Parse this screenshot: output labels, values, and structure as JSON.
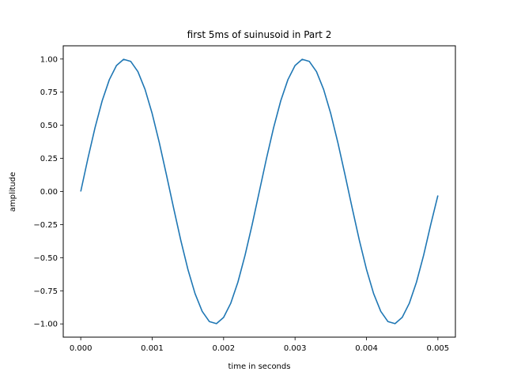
{
  "chart_data": {
    "type": "line",
    "title": "first 5ms of suinusoid in Part 2",
    "xlabel": "time in seconds",
    "ylabel": "amplitude",
    "xlim": [
      -0.000245,
      0.005245
    ],
    "ylim": [
      -1.1,
      1.1
    ],
    "grid": false,
    "x_ticks": [
      0.0,
      0.001,
      0.002,
      0.003,
      0.004,
      0.005
    ],
    "x_tick_labels": [
      "0.000",
      "0.001",
      "0.002",
      "0.003",
      "0.004",
      "0.005"
    ],
    "y_ticks": [
      -1.0,
      -0.75,
      -0.5,
      -0.25,
      0.0,
      0.25,
      0.5,
      0.75,
      1.0
    ],
    "y_tick_labels": [
      "−1.00",
      "−0.75",
      "−0.50",
      "−0.25",
      "0.00",
      "0.25",
      "0.50",
      "0.75",
      "1.00"
    ],
    "line_color": "#1f77b4",
    "series": [
      {
        "x": [
          0.0,
          0.0001,
          0.0002,
          0.0003,
          0.0004,
          0.0005,
          0.0006,
          0.0007,
          0.0008,
          0.0009,
          0.001,
          0.0011,
          0.0012,
          0.0013,
          0.0014,
          0.0015,
          0.0016,
          0.0017,
          0.0018,
          0.0019,
          0.002,
          0.0021,
          0.0022,
          0.0023,
          0.0024,
          0.0025,
          0.0026,
          0.0027,
          0.0028,
          0.0029,
          0.003,
          0.0031,
          0.0032,
          0.0033,
          0.0034,
          0.0035,
          0.0036,
          0.0037,
          0.0038,
          0.0039,
          0.004,
          0.0041,
          0.0042,
          0.0043,
          0.0044,
          0.0045,
          0.0046,
          0.0047,
          0.0048,
          0.0049,
          0.005
        ],
        "y": [
          0.0,
          0.249,
          0.482,
          0.685,
          0.844,
          0.951,
          0.998,
          0.982,
          0.905,
          0.771,
          0.588,
          0.368,
          0.125,
          -0.125,
          -0.368,
          -0.588,
          -0.771,
          -0.905,
          -0.982,
          -0.998,
          -0.951,
          -0.844,
          -0.685,
          -0.482,
          -0.249,
          0.0,
          0.249,
          0.482,
          0.685,
          0.844,
          0.951,
          0.998,
          0.982,
          0.905,
          0.771,
          0.588,
          0.368,
          0.125,
          -0.125,
          -0.368,
          -0.588,
          -0.771,
          -0.905,
          -0.982,
          -0.998,
          -0.951,
          -0.844,
          -0.685,
          -0.482,
          -0.249,
          -0.03
        ]
      }
    ]
  }
}
